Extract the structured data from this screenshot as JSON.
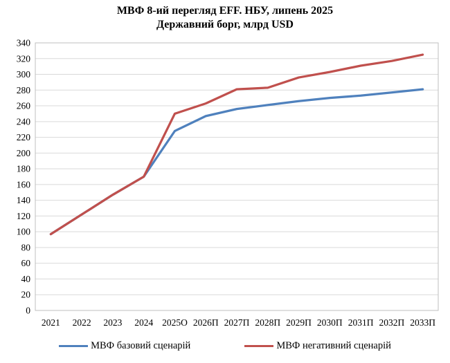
{
  "title": "МВФ 8-ий перегляд EFF. НБУ, липень 2025",
  "subtitle": "Державний борг, млрд USD",
  "chart_data": {
    "type": "line",
    "categories": [
      "2021",
      "2022",
      "2023",
      "2024",
      "2025О",
      "2026П",
      "2027П",
      "2028П",
      "2029П",
      "2030П",
      "2031П",
      "2032П",
      "2033П"
    ],
    "series": [
      {
        "name": "МВФ базовий сценарій",
        "color": "#4F81BD",
        "values": [
          97,
          122,
          147,
          170,
          228,
          247,
          256,
          261,
          266,
          270,
          273,
          277,
          281
        ]
      },
      {
        "name": "МВФ негативний сценарій",
        "color": "#C0504D",
        "values": [
          97,
          122,
          147,
          170,
          250,
          263,
          281,
          283,
          296,
          303,
          311,
          317,
          325
        ]
      }
    ],
    "ylabel": "",
    "xlabel": "",
    "ylim": [
      0,
      340
    ],
    "ytick_step": 20,
    "grid": "horizontal",
    "gridline_color": "#D9D9D9",
    "border_color": "#BFBFBF",
    "legend_position": "bottom"
  }
}
